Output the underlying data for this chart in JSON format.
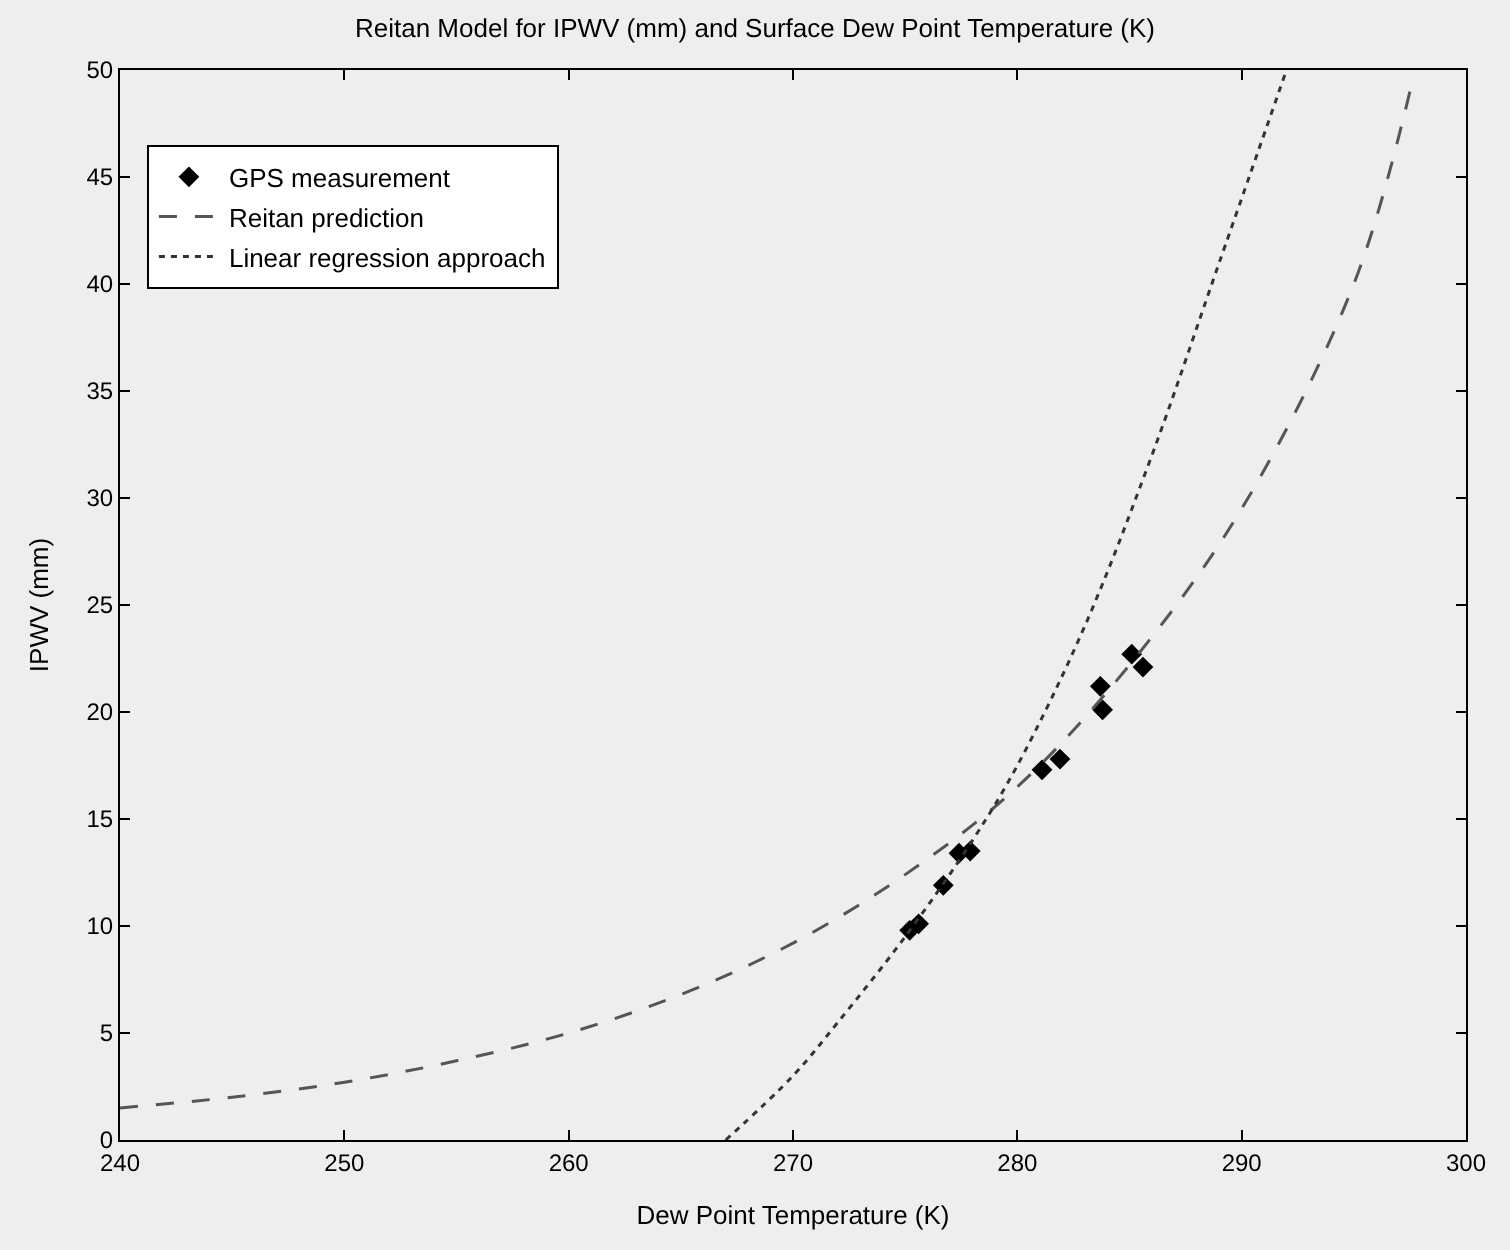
{
  "chart_data": {
    "type": "line",
    "title": "Reitan Model for IPWV (mm) and Surface Dew Point Temperature (K)",
    "xlabel": "Dew Point Temperature (K)",
    "ylabel": "IPWV (mm)",
    "xlim": [
      240,
      300
    ],
    "xticks": [
      240,
      250,
      260,
      270,
      280,
      290,
      300
    ],
    "ylim": [
      0,
      50
    ],
    "yticks": [
      0,
      5,
      10,
      15,
      20,
      25,
      30,
      35,
      40,
      45,
      50
    ],
    "grid": false,
    "legend": "top left",
    "series": [
      {
        "name": "GPS measurement",
        "type": "scatter",
        "marker": "diamond",
        "color": "#000000",
        "x": [
          275.2,
          275.6,
          276.7,
          277.4,
          277.9,
          281.1,
          281.9,
          283.7,
          283.8,
          285.1,
          285.6
        ],
        "values": [
          9.8,
          10.1,
          11.9,
          13.4,
          13.5,
          17.3,
          17.8,
          21.2,
          20.1,
          22.7,
          22.1
        ]
      },
      {
        "name": "Reitan prediction",
        "line_style": "dashed",
        "color": "#555555",
        "x": [
          240,
          245,
          250,
          255,
          260,
          265,
          270,
          275,
          280,
          285,
          290,
          295,
          297.5
        ],
        "values": [
          1.5,
          2.0,
          2.7,
          3.7,
          5.0,
          6.8,
          9.2,
          12.4,
          16.5,
          22.2,
          29.5,
          40.0,
          49.0
        ]
      },
      {
        "name": "Linear regression approach",
        "line_style": "dotted",
        "color": "#333333",
        "x": [
          267,
          270,
          272,
          275,
          278,
          280,
          283,
          286,
          289,
          292
        ],
        "values": [
          0,
          3,
          5.5,
          9.5,
          14,
          17.5,
          24,
          32,
          41,
          50
        ]
      }
    ]
  }
}
